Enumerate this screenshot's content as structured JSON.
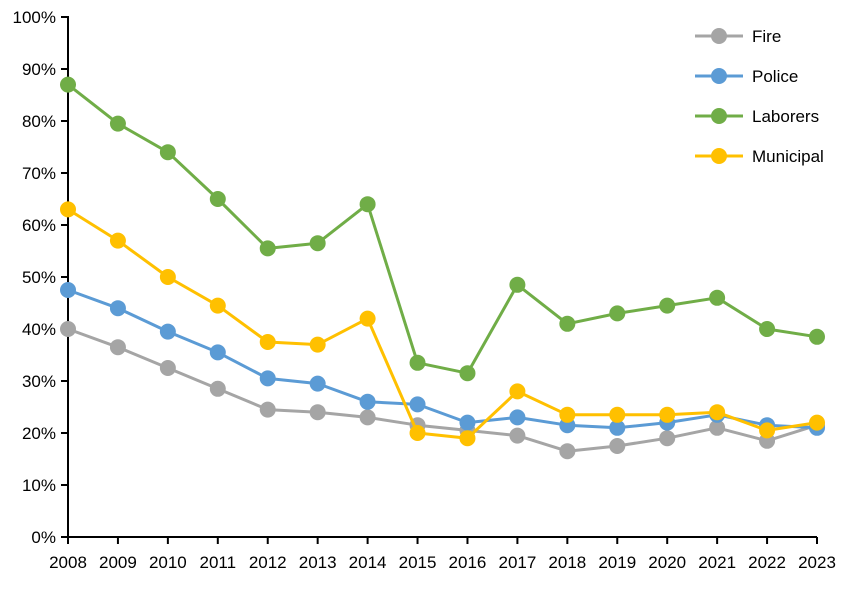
{
  "chart_data": {
    "type": "line",
    "title": "",
    "categories": [
      "2008",
      "2009",
      "2010",
      "2011",
      "2012",
      "2013",
      "2014",
      "2015",
      "2016",
      "2017",
      "2018",
      "2019",
      "2020",
      "2021",
      "2022",
      "2023"
    ],
    "series": [
      {
        "name": "Fire",
        "color": "#A5A5A5",
        "values": [
          40.0,
          36.5,
          32.5,
          28.5,
          24.5,
          24.0,
          23.0,
          21.5,
          20.5,
          19.5,
          16.5,
          17.5,
          19.0,
          21.0,
          18.5,
          21.5
        ]
      },
      {
        "name": "Police",
        "color": "#5B9BD5",
        "values": [
          47.5,
          44.0,
          39.5,
          35.5,
          30.5,
          29.5,
          26.0,
          25.5,
          22.0,
          23.0,
          21.5,
          21.0,
          22.0,
          23.5,
          21.5,
          21.0
        ]
      },
      {
        "name": "Laborers",
        "color": "#70AD47",
        "values": [
          87.0,
          79.5,
          74.0,
          65.0,
          55.5,
          56.5,
          64.0,
          33.5,
          31.5,
          48.5,
          41.0,
          43.0,
          44.5,
          46.0,
          40.0,
          38.5
        ]
      },
      {
        "name": "Municipal",
        "color": "#FFC000",
        "values": [
          63.0,
          57.0,
          50.0,
          44.5,
          37.5,
          37.0,
          42.0,
          20.0,
          19.0,
          28.0,
          23.5,
          23.5,
          23.5,
          24.0,
          20.5,
          22.0
        ]
      }
    ],
    "xlabel": "",
    "ylabel": "",
    "ylim": [
      0,
      100
    ],
    "ytick_step": 10,
    "ytick_labels": [
      "0%",
      "10%",
      "20%",
      "30%",
      "40%",
      "50%",
      "60%",
      "70%",
      "80%",
      "90%",
      "100%"
    ],
    "legend_position": "top-right",
    "legend_entries": [
      "Fire",
      "Police",
      "Laborers",
      "Municipal"
    ],
    "grid": false,
    "axis_color": "#000000",
    "text_color": "#000000",
    "background_color": "#FFFFFF",
    "marker": "circle"
  }
}
